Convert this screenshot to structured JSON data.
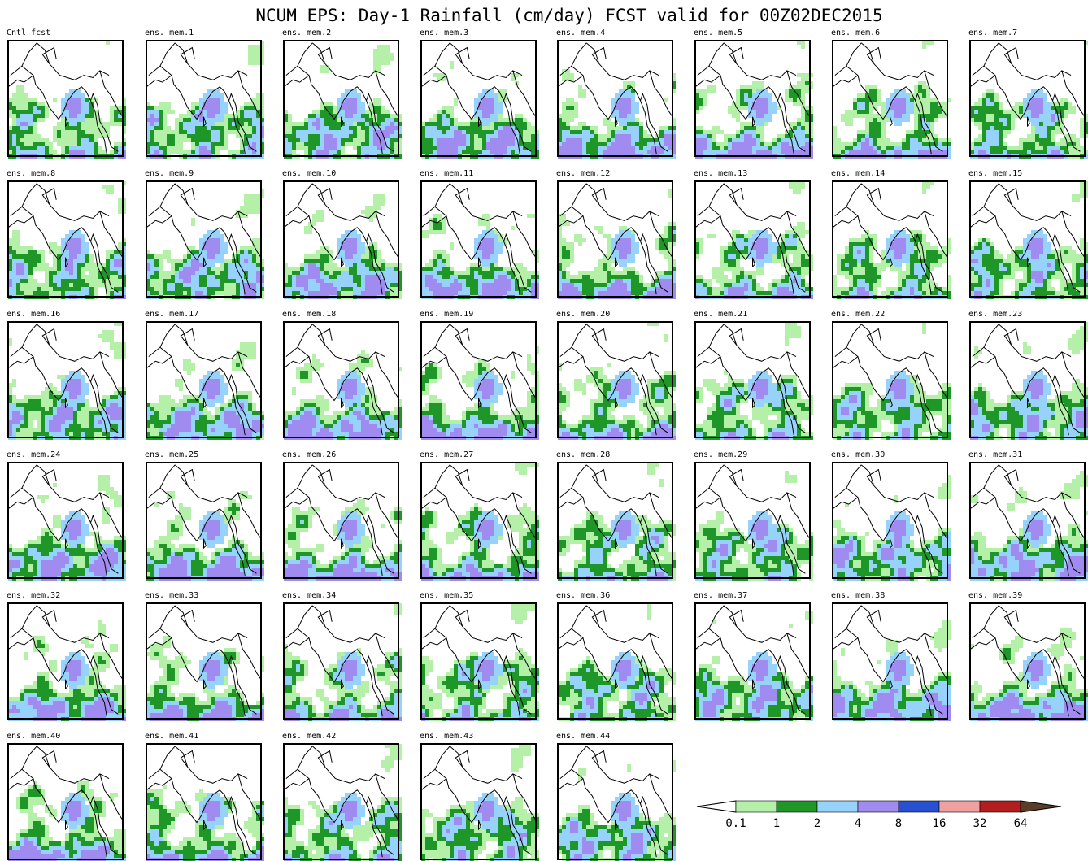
{
  "title": "NCUM EPS: Day-1 Rainfall (cm/day) FCST valid for 00Z02DEC2015",
  "panels": [
    "Cntl fcst",
    "ens. mem.1",
    "ens. mem.2",
    "ens. mem.3",
    "ens. mem.4",
    "ens. mem.5",
    "ens. mem.6",
    "ens. mem.7",
    "ens. mem.8",
    "ens. mem.9",
    "ens. mem.10",
    "ens. mem.11",
    "ens. mem.12",
    "ens. mem.13",
    "ens. mem.14",
    "ens. mem.15",
    "ens. mem.16",
    "ens. mem.17",
    "ens. mem.18",
    "ens. mem.19",
    "ens. mem.20",
    "ens. mem.21",
    "ens. mem.22",
    "ens. mem.23",
    "ens. mem.24",
    "ens. mem.25",
    "ens. mem.26",
    "ens. mem.27",
    "ens. mem.28",
    "ens. mem.29",
    "ens. mem.30",
    "ens. mem.31",
    "ens. mem.32",
    "ens. mem.33",
    "ens. mem.34",
    "ens. mem.35",
    "ens. mem.36",
    "ens. mem.37",
    "ens. mem.38",
    "ens. mem.39",
    "ens. mem.40",
    "ens. mem.41",
    "ens. mem.42",
    "ens. mem.43",
    "ens. mem.44"
  ],
  "legend": {
    "labels": [
      "0.1",
      "1",
      "2",
      "4",
      "8",
      "16",
      "32",
      "64"
    ],
    "colors": [
      "#b4f0a8",
      "#1e9628",
      "#96d2fa",
      "#a08cf0",
      "#2850d2",
      "#f0a0a0",
      "#b41e1e"
    ],
    "under_color": "#ffffff",
    "over_color": "#5a3c28"
  }
}
